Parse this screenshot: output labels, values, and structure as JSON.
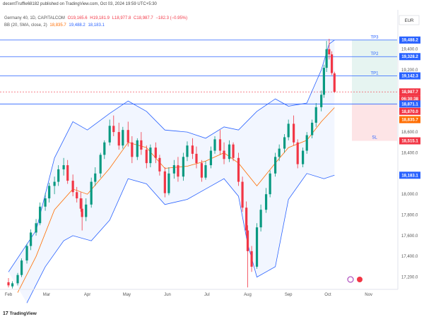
{
  "header": {
    "publish_line": "decentTruffle68182 published on TradingView.com, Oct 03, 2024 19:59 UTC+5:30"
  },
  "legend": {
    "symbol_line": "Germany 40, 1D, CAPITALCOM",
    "ohlc_open": "O19,165.6",
    "ohlc_high": "H19,181.9",
    "ohlc_low": "L18,977.8",
    "ohlc_close": "C18,987.7",
    "ohlc_change": "−182.3 (−0.95%)",
    "bb_label": "BB (20, SMA, close, 2)",
    "bb_basis": "18,835.7",
    "bb_upper": "19,488.2",
    "bb_lower": "18,183.1"
  },
  "brand": {
    "name": "TradingView"
  },
  "colors": {
    "up": "#089981",
    "down": "#f23645",
    "bb_band": "#2962ff",
    "bb_basis": "#ff6d00",
    "level_line": "#2962ff",
    "target_zone": "#e6f4f1",
    "stop_zone": "#fde4e6"
  },
  "chart_data": {
    "type": "candlestick",
    "title": "Germany 40, 1D, CAPITALCOM",
    "currency": "EUR",
    "ylim": [
      17095,
      19575
    ],
    "y_ticks": [
      "19,400.0",
      "19,200.0",
      "18,600.0",
      "18,400.0",
      "18,000.0",
      "17,800.0",
      "17,600.0",
      "17,400.0",
      "17,200.0"
    ],
    "x_ticks": [
      "Feb",
      "Mar",
      "Apr",
      "May",
      "Jun",
      "Jul",
      "Aug",
      "Sep",
      "Oct",
      "Nov"
    ],
    "x_tick_days": [
      0,
      29,
      60,
      90,
      121,
      151,
      182,
      213,
      243,
      274
    ],
    "candles": [
      {
        "d": 0,
        "o": 17150,
        "h": 17190,
        "l": 17100,
        "c": 17120
      },
      {
        "d": 3,
        "o": 17110,
        "h": 17160,
        "l": 17090,
        "c": 17140
      },
      {
        "d": 7,
        "o": 17140,
        "h": 17240,
        "l": 17120,
        "c": 17220
      },
      {
        "d": 10,
        "o": 17220,
        "h": 17380,
        "l": 17200,
        "c": 17360
      },
      {
        "d": 14,
        "o": 17360,
        "h": 17520,
        "l": 17330,
        "c": 17500
      },
      {
        "d": 17,
        "o": 17500,
        "h": 17660,
        "l": 17460,
        "c": 17630
      },
      {
        "d": 21,
        "o": 17630,
        "h": 17760,
        "l": 17600,
        "c": 17720
      },
      {
        "d": 24,
        "o": 17720,
        "h": 17920,
        "l": 17700,
        "c": 17880
      },
      {
        "d": 28,
        "o": 17880,
        "h": 18010,
        "l": 17840,
        "c": 17960
      },
      {
        "d": 31,
        "o": 17960,
        "h": 18110,
        "l": 17920,
        "c": 18080
      },
      {
        "d": 35,
        "o": 18080,
        "h": 18170,
        "l": 18000,
        "c": 18120
      },
      {
        "d": 38,
        "o": 18120,
        "h": 18280,
        "l": 18080,
        "c": 18240
      },
      {
        "d": 42,
        "o": 18240,
        "h": 18350,
        "l": 18180,
        "c": 18280
      },
      {
        "d": 45,
        "o": 18280,
        "h": 18330,
        "l": 18100,
        "c": 18130
      },
      {
        "d": 49,
        "o": 18130,
        "h": 18190,
        "l": 17980,
        "c": 18020
      },
      {
        "d": 52,
        "o": 18020,
        "h": 18070,
        "l": 17920,
        "c": 17960
      },
      {
        "d": 55,
        "o": 17960,
        "h": 18020,
        "l": 17830,
        "c": 17860
      },
      {
        "d": 56,
        "o": 17860,
        "h": 17960,
        "l": 17650,
        "c": 17780
      },
      {
        "d": 59,
        "o": 17780,
        "h": 17960,
        "l": 17740,
        "c": 17900
      },
      {
        "d": 63,
        "o": 17900,
        "h": 18160,
        "l": 17870,
        "c": 18120
      },
      {
        "d": 66,
        "o": 18120,
        "h": 18260,
        "l": 18080,
        "c": 18200
      },
      {
        "d": 70,
        "o": 18200,
        "h": 18400,
        "l": 18160,
        "c": 18380
      },
      {
        "d": 73,
        "o": 18380,
        "h": 18520,
        "l": 18340,
        "c": 18500
      },
      {
        "d": 77,
        "o": 18500,
        "h": 18720,
        "l": 18470,
        "c": 18660
      },
      {
        "d": 80,
        "o": 18660,
        "h": 18760,
        "l": 18560,
        "c": 18600
      },
      {
        "d": 84,
        "o": 18600,
        "h": 18690,
        "l": 18430,
        "c": 18470
      },
      {
        "d": 87,
        "o": 18470,
        "h": 18650,
        "l": 18440,
        "c": 18620
      },
      {
        "d": 91,
        "o": 18620,
        "h": 18700,
        "l": 18460,
        "c": 18500
      },
      {
        "d": 94,
        "o": 18500,
        "h": 18560,
        "l": 18300,
        "c": 18360
      },
      {
        "d": 98,
        "o": 18360,
        "h": 18540,
        "l": 18330,
        "c": 18520
      },
      {
        "d": 101,
        "o": 18520,
        "h": 18600,
        "l": 18380,
        "c": 18430
      },
      {
        "d": 105,
        "o": 18430,
        "h": 18470,
        "l": 18250,
        "c": 18300
      },
      {
        "d": 108,
        "o": 18300,
        "h": 18480,
        "l": 18260,
        "c": 18450
      },
      {
        "d": 112,
        "o": 18450,
        "h": 18500,
        "l": 18300,
        "c": 18350
      },
      {
        "d": 115,
        "o": 18350,
        "h": 18380,
        "l": 18180,
        "c": 18220
      },
      {
        "d": 119,
        "o": 18220,
        "h": 18260,
        "l": 17970,
        "c": 18010
      },
      {
        "d": 122,
        "o": 18010,
        "h": 18260,
        "l": 17990,
        "c": 18200
      },
      {
        "d": 126,
        "o": 18200,
        "h": 18330,
        "l": 18150,
        "c": 18280
      },
      {
        "d": 129,
        "o": 18280,
        "h": 18360,
        "l": 18120,
        "c": 18170
      },
      {
        "d": 133,
        "o": 18170,
        "h": 18400,
        "l": 18130,
        "c": 18360
      },
      {
        "d": 136,
        "o": 18360,
        "h": 18510,
        "l": 18320,
        "c": 18470
      },
      {
        "d": 140,
        "o": 18470,
        "h": 18540,
        "l": 18340,
        "c": 18390
      },
      {
        "d": 143,
        "o": 18390,
        "h": 18460,
        "l": 18250,
        "c": 18300
      },
      {
        "d": 147,
        "o": 18300,
        "h": 18330,
        "l": 18120,
        "c": 18160
      },
      {
        "d": 150,
        "o": 18160,
        "h": 18320,
        "l": 18140,
        "c": 18280
      },
      {
        "d": 154,
        "o": 18280,
        "h": 18460,
        "l": 18250,
        "c": 18420
      },
      {
        "d": 157,
        "o": 18420,
        "h": 18560,
        "l": 18390,
        "c": 18530
      },
      {
        "d": 161,
        "o": 18530,
        "h": 18620,
        "l": 18380,
        "c": 18420
      },
      {
        "d": 164,
        "o": 18420,
        "h": 18500,
        "l": 18290,
        "c": 18340
      },
      {
        "d": 168,
        "o": 18340,
        "h": 18520,
        "l": 18310,
        "c": 18480
      },
      {
        "d": 171,
        "o": 18480,
        "h": 18500,
        "l": 18320,
        "c": 18350
      },
      {
        "d": 175,
        "o": 18350,
        "h": 18400,
        "l": 18080,
        "c": 18120
      },
      {
        "d": 178,
        "o": 18120,
        "h": 18170,
        "l": 17830,
        "c": 17870
      },
      {
        "d": 181,
        "o": 17870,
        "h": 17930,
        "l": 17600,
        "c": 17650
      },
      {
        "d": 182,
        "o": 17650,
        "h": 17700,
        "l": 17100,
        "c": 17450
      },
      {
        "d": 185,
        "o": 17450,
        "h": 17500,
        "l": 17250,
        "c": 17300
      },
      {
        "d": 189,
        "o": 17300,
        "h": 17720,
        "l": 17280,
        "c": 17680
      },
      {
        "d": 192,
        "o": 17680,
        "h": 17900,
        "l": 17640,
        "c": 17850
      },
      {
        "d": 196,
        "o": 17850,
        "h": 18060,
        "l": 17820,
        "c": 18000
      },
      {
        "d": 199,
        "o": 18000,
        "h": 18230,
        "l": 17970,
        "c": 18200
      },
      {
        "d": 203,
        "o": 18200,
        "h": 18400,
        "l": 18170,
        "c": 18360
      },
      {
        "d": 206,
        "o": 18360,
        "h": 18480,
        "l": 18320,
        "c": 18440
      },
      {
        "d": 210,
        "o": 18440,
        "h": 18580,
        "l": 18400,
        "c": 18550
      },
      {
        "d": 213,
        "o": 18550,
        "h": 18720,
        "l": 18520,
        "c": 18680
      },
      {
        "d": 217,
        "o": 18680,
        "h": 18760,
        "l": 18470,
        "c": 18500
      },
      {
        "d": 220,
        "o": 18500,
        "h": 18530,
        "l": 18250,
        "c": 18290
      },
      {
        "d": 224,
        "o": 18290,
        "h": 18450,
        "l": 18260,
        "c": 18420
      },
      {
        "d": 227,
        "o": 18420,
        "h": 18600,
        "l": 18390,
        "c": 18570
      },
      {
        "d": 231,
        "o": 18570,
        "h": 18720,
        "l": 18540,
        "c": 18690
      },
      {
        "d": 234,
        "o": 18690,
        "h": 18880,
        "l": 18650,
        "c": 18840
      },
      {
        "d": 238,
        "o": 18840,
        "h": 19000,
        "l": 18800,
        "c": 18960
      },
      {
        "d": 240,
        "o": 18960,
        "h": 19250,
        "l": 18930,
        "c": 19220
      },
      {
        "d": 242,
        "o": 19220,
        "h": 19480,
        "l": 19180,
        "c": 19400
      },
      {
        "d": 244,
        "o": 19400,
        "h": 19500,
        "l": 19300,
        "c": 19350
      },
      {
        "d": 246,
        "o": 19350,
        "h": 19380,
        "l": 19150,
        "c": 19170
      },
      {
        "d": 248,
        "o": 19166,
        "h": 19182,
        "l": 18978,
        "c": 18988
      }
    ],
    "bollinger": {
      "period": 20,
      "std": 2,
      "upper": [
        [
          0,
          17250
        ],
        [
          21,
          17650
        ],
        [
          35,
          18350
        ],
        [
          49,
          18700
        ],
        [
          60,
          18620
        ],
        [
          77,
          18780
        ],
        [
          91,
          18900
        ],
        [
          105,
          18800
        ],
        [
          119,
          18620
        ],
        [
          136,
          18600
        ],
        [
          150,
          18540
        ],
        [
          164,
          18650
        ],
        [
          175,
          18620
        ],
        [
          189,
          18800
        ],
        [
          203,
          18920
        ],
        [
          213,
          18850
        ],
        [
          227,
          18880
        ],
        [
          238,
          19200
        ],
        [
          244,
          19450
        ],
        [
          248,
          19488
        ]
      ],
      "basis": [
        [
          7,
          17050
        ],
        [
          21,
          17400
        ],
        [
          35,
          17850
        ],
        [
          49,
          18050
        ],
        [
          60,
          18000
        ],
        [
          77,
          18250
        ],
        [
          91,
          18500
        ],
        [
          105,
          18450
        ],
        [
          119,
          18250
        ],
        [
          136,
          18270
        ],
        [
          150,
          18320
        ],
        [
          164,
          18400
        ],
        [
          175,
          18300
        ],
        [
          189,
          18080
        ],
        [
          203,
          18300
        ],
        [
          213,
          18450
        ],
        [
          227,
          18520
        ],
        [
          238,
          18700
        ],
        [
          248,
          18836
        ]
      ],
      "lower": [
        [
          14,
          16950
        ],
        [
          28,
          17300
        ],
        [
          42,
          17550
        ],
        [
          49,
          17600
        ],
        [
          63,
          17550
        ],
        [
          77,
          17750
        ],
        [
          91,
          18150
        ],
        [
          105,
          18100
        ],
        [
          119,
          17900
        ],
        [
          136,
          17950
        ],
        [
          150,
          18050
        ],
        [
          164,
          18150
        ],
        [
          175,
          17980
        ],
        [
          182,
          17520
        ],
        [
          189,
          17200
        ],
        [
          203,
          17300
        ],
        [
          213,
          17950
        ],
        [
          227,
          18200
        ],
        [
          240,
          18150
        ],
        [
          248,
          18183
        ]
      ]
    },
    "position": {
      "entry": 18871.1,
      "stop": 18515.1,
      "targets": [
        {
          "label": "TP1",
          "price": 19142.3
        },
        {
          "label": "TP2",
          "price": 19328.2
        },
        {
          "label": "TP3",
          "price": 19488.2
        }
      ],
      "stop_label": "SL"
    },
    "price_labels": [
      {
        "text": "19,488.2",
        "price": 19488.2,
        "color": "#2962ff"
      },
      {
        "text": "19,328.2",
        "price": 19328.2,
        "color": "#2962ff"
      },
      {
        "text": "19,142.3",
        "price": 19142.3,
        "color": "#2962ff"
      },
      {
        "text": "18,987.7",
        "price": 18987.7,
        "color": "#f23645"
      },
      {
        "text": "06:30:38",
        "price": 18920,
        "color": "#f23645"
      },
      {
        "text": "18,871.1",
        "price": 18871.1,
        "color": "#2962ff"
      },
      {
        "text": "18,870.0",
        "price": 18800,
        "color": "#f23645"
      },
      {
        "text": "18,835.7",
        "price": 18720,
        "color": "#ff6d00"
      },
      {
        "text": "18,515.1",
        "price": 18515.1,
        "color": "#f23645"
      },
      {
        "text": "18,183.1",
        "price": 18183.1,
        "color": "#2962ff"
      }
    ]
  }
}
